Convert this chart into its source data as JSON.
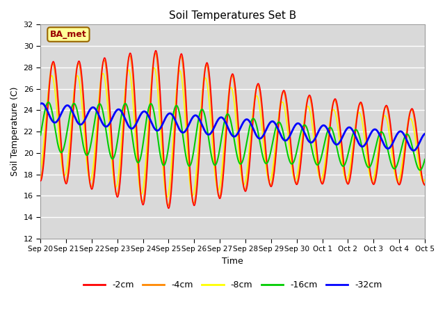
{
  "title": "Soil Temperatures Set B",
  "xlabel": "Time",
  "ylabel": "Soil Temperature (C)",
  "ylim": [
    12,
    32
  ],
  "yticks": [
    12,
    14,
    16,
    18,
    20,
    22,
    24,
    26,
    28,
    30,
    32
  ],
  "background_color": "#d9d9d9",
  "fig_color": "#ffffff",
  "line_colors": {
    "-2cm": "#ff0000",
    "-4cm": "#ff8800",
    "-8cm": "#ffff00",
    "-16cm": "#00cc00",
    "-32cm": "#0000ff"
  },
  "line_widths": {
    "-2cm": 1.2,
    "-4cm": 1.2,
    "-8cm": 1.2,
    "-16cm": 1.5,
    "-32cm": 2.0
  },
  "label_box_text": "BA_met",
  "label_box_facecolor": "#ffff99",
  "label_box_edgecolor": "#996600",
  "label_box_textcolor": "#990000",
  "n_points": 3600,
  "n_days": 15,
  "x_tick_labels": [
    "Sep 20",
    "Sep 21",
    "Sep 22",
    "Sep 23",
    "Sep 24",
    "Sep 25",
    "Sep 26",
    "Sep 27",
    "Sep 28",
    "Sep 29",
    "Sep 30",
    "Oct 1",
    "Oct 2",
    "Oct 3",
    "Oct 4",
    "Oct 5"
  ],
  "legend_entries": [
    "-2cm",
    "-4cm",
    "-8cm",
    "-16cm",
    "-32cm"
  ]
}
